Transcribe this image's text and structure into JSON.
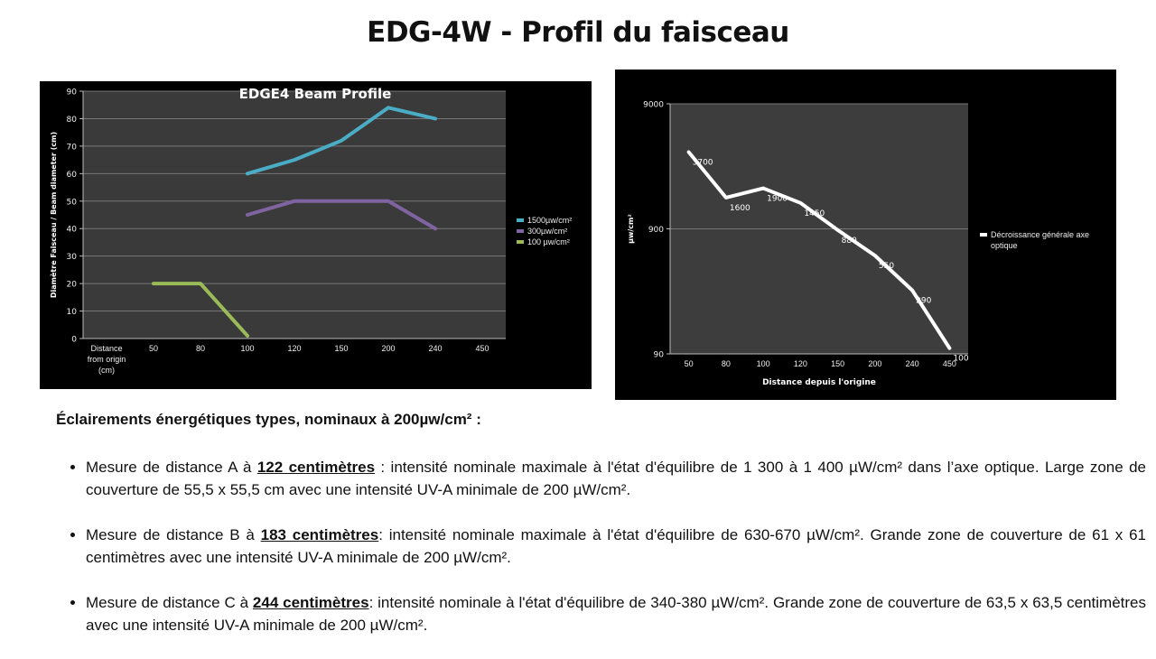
{
  "title": "EDG-4W - Profil du faisceau",
  "chart_data": [
    {
      "type": "line",
      "title": "EDGE4 Beam Profile",
      "ylabel": "Diamètre Faisceau / Beam diameter (cm)",
      "categories": [
        "Distance from origin (cm)",
        "50",
        "80",
        "100",
        "120",
        "150",
        "200",
        "240",
        "450"
      ],
      "series": [
        {
          "name": "1500µw/cm²",
          "color": "#4bacc6",
          "values": [
            null,
            null,
            null,
            60,
            65,
            72,
            84,
            80,
            null
          ]
        },
        {
          "name": "300µw/cm²",
          "color": "#8064a2",
          "values": [
            null,
            null,
            null,
            45,
            50,
            50,
            50,
            40,
            null
          ]
        },
        {
          "name": "100 µw/cm²",
          "color": "#9bbb59",
          "values": [
            null,
            20,
            20,
            1,
            null,
            null,
            null,
            null,
            null
          ]
        }
      ],
      "ylim": [
        0,
        90
      ],
      "yticks": [
        0,
        10,
        20,
        30,
        40,
        50,
        60,
        70,
        80,
        90
      ],
      "grid": true,
      "log_scale": false,
      "legend": "right"
    },
    {
      "type": "line",
      "xlabel": "Distance depuis l'origine",
      "ylabel": "µw/cm²",
      "categories": [
        "50",
        "80",
        "100",
        "120",
        "150",
        "200",
        "240",
        "450"
      ],
      "series": [
        {
          "name": "Décroissance générale axe optique",
          "color": "#ffffff",
          "values": [
            3700,
            1600,
            1900,
            1450,
            880,
            550,
            290,
            100
          ],
          "data_labels": true
        }
      ],
      "ylim": [
        90,
        9000
      ],
      "yticks": [
        90,
        900,
        9000
      ],
      "grid": true,
      "log_scale": true,
      "legend": "right"
    }
  ],
  "text": {
    "heading": "Éclairements énergétiques types, nominaux à 200µw/cm² :",
    "bullets": [
      {
        "before": "Mesure de distance A à ",
        "bold": "122 centimètres",
        "after": " : intensité nominale maximale à l'état d'équilibre de 1 300 à 1 400 µW/cm² dans l’axe optique. Large zone de couverture de 55,5 x 55,5 cm avec une intensité UV-A minimale de 200 µW/cm²."
      },
      {
        "before": "Mesure de distance B à ",
        "bold": "183 centimètres",
        "after": ": intensité nominale maximale à l'état d'équilibre de 630-670 µW/cm². Grande zone de couverture de 61 x 61 centimètres avec une intensité UV-A minimale de 200 µW/cm²."
      },
      {
        "before": "Mesure de distance C à ",
        "bold": "244 centimètres",
        "after": ": intensité nominale à l'état d'équilibre de 340-380 µW/cm². Grande zone de couverture de 63,5 x 63,5 centimètres avec une intensité UV-A minimale de 200 µW/cm²."
      }
    ]
  }
}
